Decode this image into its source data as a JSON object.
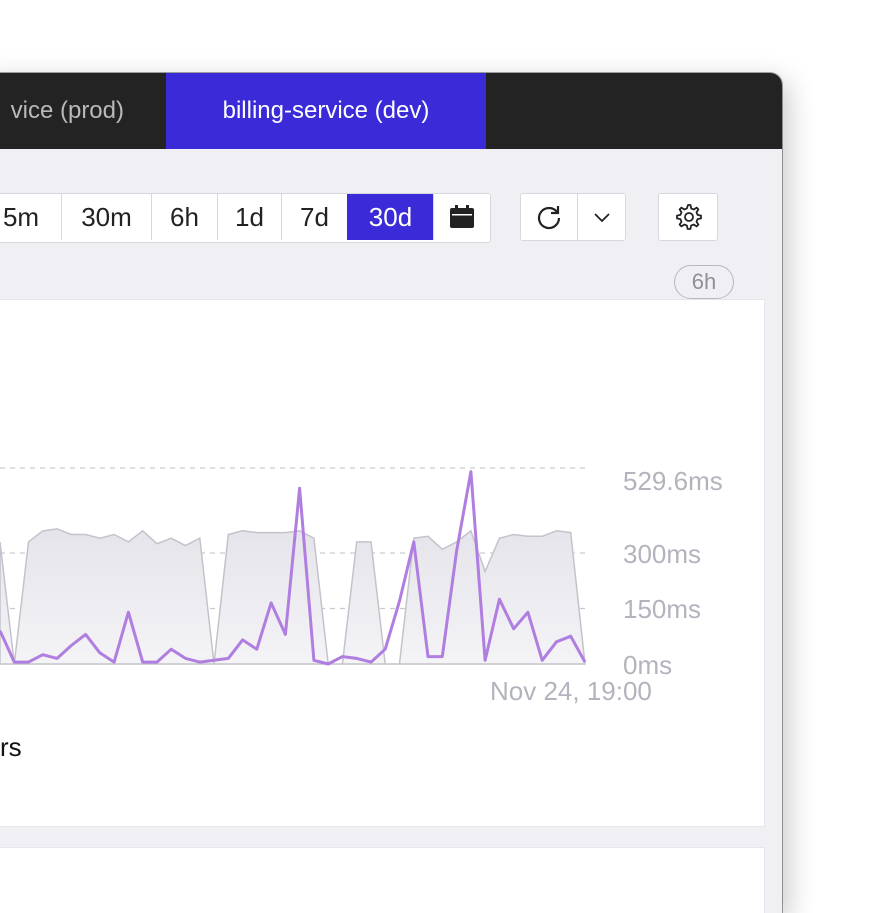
{
  "tabs": [
    {
      "label": "vice (prod)",
      "active": false
    },
    {
      "label": "billing-service (dev)",
      "active": true
    }
  ],
  "time_range": {
    "options": [
      "5m",
      "30m",
      "6h",
      "1d",
      "7d",
      "30d"
    ],
    "selected": "30d"
  },
  "icons": {
    "calendar": "calendar-icon",
    "refresh": "refresh-icon",
    "dropdown": "chevron-down-icon",
    "settings": "gear-icon"
  },
  "colors": {
    "accent": "#3a2ad8",
    "line": "#b07ee0",
    "area_fill": "#e6e6ec",
    "area_stroke": "#c3c3cc",
    "tabbar": "#232323"
  },
  "panel": {
    "badge": "6h",
    "legend_fragment": "rs"
  },
  "chart_data": {
    "type": "line",
    "y_tick_labels": [
      "529.6ms",
      "300ms",
      "150ms",
      "0ms"
    ],
    "y_ticks": [
      529.6,
      300,
      150,
      0
    ],
    "x_tick_labels": [
      "Nov 24, 19:00"
    ],
    "ylim": [
      0,
      529.6
    ],
    "grid": true,
    "series": [
      {
        "style": "line",
        "values": [
          90,
          5,
          5,
          25,
          15,
          50,
          80,
          30,
          5,
          140,
          5,
          5,
          40,
          15,
          5,
          10,
          15,
          65,
          40,
          165,
          80,
          475,
          10,
          0,
          20,
          15,
          5,
          40,
          170,
          330,
          20,
          20,
          305,
          520,
          10,
          175,
          95,
          140,
          10,
          60,
          75,
          5
        ]
      },
      {
        "style": "area",
        "values": [
          330,
          0,
          330,
          360,
          365,
          350,
          350,
          340,
          350,
          330,
          360,
          325,
          340,
          320,
          340,
          0,
          350,
          360,
          355,
          355,
          355,
          360,
          340,
          0,
          0,
          330,
          330,
          0,
          0,
          340,
          345,
          310,
          330,
          360,
          250,
          340,
          350,
          345,
          345,
          360,
          355,
          0
        ]
      }
    ]
  }
}
